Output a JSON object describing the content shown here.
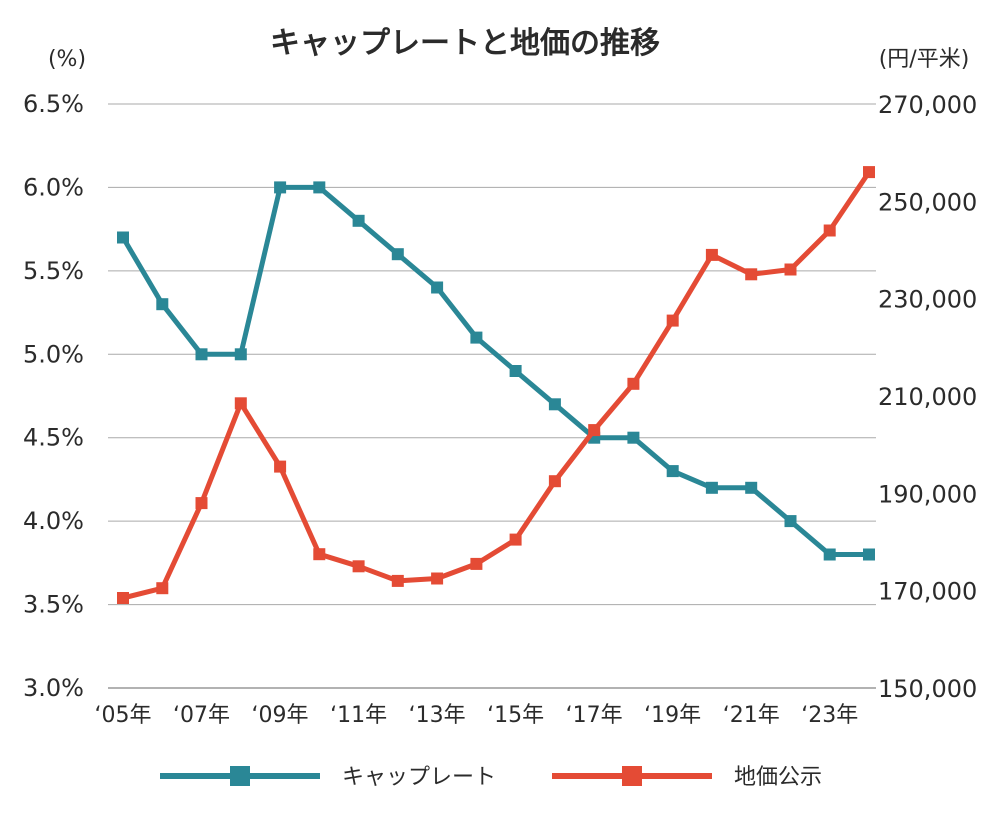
{
  "chart_data": {
    "type": "line",
    "title": "キャップレートと地価の推移",
    "left_axis": {
      "unit": "(%)",
      "range": [
        3.0,
        6.5
      ],
      "ticks": [
        3.0,
        3.5,
        4.0,
        4.5,
        5.0,
        5.5,
        6.0,
        6.5
      ],
      "tick_labels": [
        "3.0%",
        "3.5%",
        "4.0%",
        "4.5%",
        "5.0%",
        "5.5%",
        "6.0%",
        "6.5%"
      ]
    },
    "right_axis": {
      "unit": "(円/平米)",
      "range": [
        150000,
        270000
      ],
      "ticks": [
        150000,
        170000,
        190000,
        210000,
        230000,
        250000,
        270000
      ],
      "tick_labels": [
        "150,000",
        "170,000",
        "190,000",
        "210,000",
        "230,000",
        "250,000",
        "270,000"
      ]
    },
    "x": [
      2005,
      2006,
      2007,
      2008,
      2009,
      2010,
      2011,
      2012,
      2013,
      2014,
      2015,
      2016,
      2017,
      2018,
      2019,
      2020,
      2021,
      2022,
      2023,
      2024
    ],
    "x_tick_labels": [
      {
        "year": 2005,
        "label": "‘05年"
      },
      {
        "year": 2007,
        "label": "‘07年"
      },
      {
        "year": 2009,
        "label": "‘09年"
      },
      {
        "year": 2011,
        "label": "‘11年"
      },
      {
        "year": 2013,
        "label": "‘13年"
      },
      {
        "year": 2015,
        "label": "‘15年"
      },
      {
        "year": 2017,
        "label": "‘17年"
      },
      {
        "year": 2019,
        "label": "‘19年"
      },
      {
        "year": 2021,
        "label": "‘21年"
      },
      {
        "year": 2023,
        "label": "‘23年"
      }
    ],
    "grid": true,
    "legend_position": "bottom",
    "series": [
      {
        "name": "キャップレート",
        "axis": "left",
        "color": "#2a8796",
        "values": [
          5.7,
          5.3,
          5.0,
          5.0,
          6.0,
          6.0,
          5.8,
          5.6,
          5.4,
          5.1,
          4.9,
          4.7,
          4.5,
          4.5,
          4.3,
          4.2,
          4.2,
          4.0,
          3.8,
          3.8
        ]
      },
      {
        "name": "地価公示",
        "axis": "right",
        "color": "#e44b35",
        "values": [
          168500,
          170500,
          188000,
          208500,
          195500,
          177500,
          175000,
          172000,
          172500,
          175500,
          180500,
          192500,
          203000,
          212500,
          225500,
          239000,
          235000,
          236000,
          244000,
          256000
        ]
      }
    ]
  }
}
